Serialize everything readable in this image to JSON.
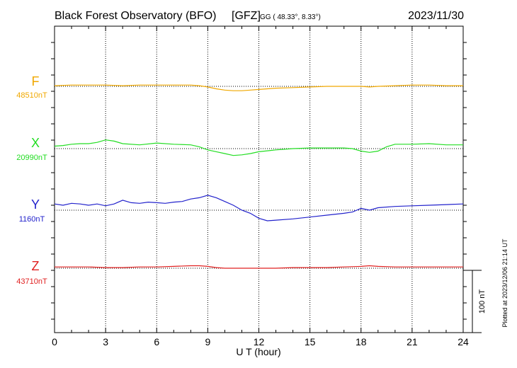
{
  "header": {
    "title": "Black Forest Observatory (BFO)",
    "org": "[GFZ]",
    "coords": "GG ( 48.33°,   8.33°)",
    "date": "2023/11/30"
  },
  "footer": {
    "plotted": "Plotted at 2023/12/06 21:14 UT"
  },
  "chart_data": {
    "type": "line",
    "xlabel": "U T (hour)",
    "xlim": [
      0,
      24
    ],
    "xticks": [
      "0",
      "3",
      "6",
      "9",
      "12",
      "15",
      "18",
      "21",
      "24"
    ],
    "grid": true,
    "scale_bar": {
      "label": "100 nT",
      "value_nT": 100
    },
    "series": [
      {
        "name": "F",
        "baseline_label": "48510nT",
        "baseline": 48510,
        "color": "#f0a800",
        "x": [
          0,
          1,
          2,
          3,
          4,
          5,
          6,
          7,
          8,
          8.5,
          9,
          9.5,
          10,
          10.5,
          11,
          11.5,
          12,
          12.5,
          13,
          14,
          15,
          16,
          17,
          18,
          18.5,
          19,
          20,
          21,
          22,
          23,
          24
        ],
        "y": [
          48511,
          48512,
          48512,
          48512,
          48511,
          48512,
          48512,
          48512,
          48512,
          48511,
          48509,
          48506,
          48504,
          48503,
          48503,
          48504,
          48505,
          48506,
          48507,
          48508,
          48509,
          48510,
          48510,
          48510,
          48509,
          48510,
          48511,
          48512,
          48512,
          48511,
          48511
        ]
      },
      {
        "name": "X",
        "baseline_label": "20990nT",
        "baseline": 20990,
        "color": "#22dd22",
        "x": [
          0,
          0.5,
          1,
          1.5,
          2,
          2.5,
          3,
          3.5,
          4,
          5,
          6,
          7,
          8,
          8.5,
          9,
          9.5,
          10,
          10.5,
          11,
          11.5,
          12,
          13,
          14,
          15,
          16,
          17,
          17.5,
          18,
          18.5,
          19,
          19.5,
          20,
          21,
          22,
          23,
          24
        ],
        "y": [
          20994,
          20995,
          20997,
          20998,
          20998,
          21000,
          21004,
          21002,
          20998,
          20996,
          20999,
          20997,
          20996,
          20993,
          20988,
          20985,
          20982,
          20979,
          20980,
          20982,
          20985,
          20988,
          20990,
          20991,
          20991,
          20991,
          20990,
          20986,
          20984,
          20986,
          20993,
          20997,
          20997,
          20998,
          20996,
          20996
        ]
      },
      {
        "name": "Y",
        "baseline_label": "1160nT",
        "baseline": 1160,
        "color": "#2222cc",
        "x": [
          0,
          0.5,
          1,
          1.5,
          2,
          2.5,
          3,
          3.5,
          4,
          4.5,
          5,
          5.5,
          6,
          6.5,
          7,
          7.5,
          8,
          8.5,
          9,
          9.5,
          10,
          10.5,
          11,
          11.5,
          12,
          12.5,
          13,
          14,
          15,
          16,
          17,
          17.5,
          18,
          18.5,
          19,
          20,
          21,
          22,
          23,
          24
        ],
        "y": [
          1170,
          1168,
          1171,
          1170,
          1168,
          1170,
          1167,
          1170,
          1176,
          1172,
          1171,
          1173,
          1172,
          1171,
          1173,
          1174,
          1178,
          1180,
          1184,
          1180,
          1174,
          1168,
          1160,
          1155,
          1147,
          1143,
          1144,
          1146,
          1149,
          1152,
          1155,
          1157,
          1163,
          1160,
          1164,
          1166,
          1167,
          1168,
          1169,
          1170
        ]
      },
      {
        "name": "Z",
        "baseline_label": "43710nT",
        "baseline": 43710,
        "color": "#e02020",
        "x": [
          0,
          1,
          2,
          3,
          4,
          5,
          6,
          7,
          8,
          8.5,
          9,
          9.5,
          10,
          11,
          12,
          13,
          14,
          15,
          16,
          17,
          18,
          18.5,
          19,
          20,
          21,
          22,
          23,
          24
        ],
        "y": [
          43712,
          43712,
          43712,
          43711,
          43711,
          43712,
          43712,
          43713,
          43714,
          43714,
          43713,
          43711,
          43710,
          43710,
          43710,
          43710,
          43711,
          43711,
          43711,
          43712,
          43713,
          43714,
          43713,
          43712,
          43712,
          43712,
          43712,
          43712
        ]
      }
    ]
  }
}
